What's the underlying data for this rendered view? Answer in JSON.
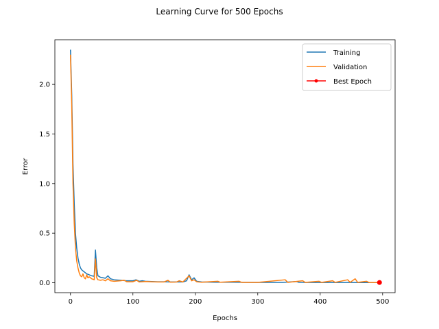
{
  "chart_data": {
    "type": "line",
    "title": "Learning Curve for 500 Epochs",
    "xlabel": "Epochs",
    "ylabel": "Error",
    "xlim": [
      -25,
      520
    ],
    "ylim": [
      -0.1,
      2.45
    ],
    "xticks": [
      0,
      100,
      200,
      300,
      400,
      500
    ],
    "yticks": [
      0.0,
      0.5,
      1.0,
      1.5,
      2.0
    ],
    "xtick_labels": [
      "0",
      "100",
      "200",
      "300",
      "400",
      "500"
    ],
    "ytick_labels": [
      "0.0",
      "0.5",
      "1.0",
      "1.5",
      "2.0"
    ],
    "grid": false,
    "legend_position": "top-right",
    "series": [
      {
        "name": "Training",
        "color": "#1f77b4",
        "marker": "none",
        "points": [
          [
            0,
            2.35
          ],
          [
            2,
            1.9
          ],
          [
            4,
            1.2
          ],
          [
            6,
            0.8
          ],
          [
            8,
            0.5
          ],
          [
            10,
            0.35
          ],
          [
            12,
            0.25
          ],
          [
            14,
            0.19
          ],
          [
            16,
            0.15
          ],
          [
            18,
            0.13
          ],
          [
            20,
            0.12
          ],
          [
            22,
            0.11
          ],
          [
            24,
            0.1
          ],
          [
            26,
            0.09
          ],
          [
            28,
            0.085
          ],
          [
            30,
            0.08
          ],
          [
            34,
            0.07
          ],
          [
            38,
            0.065
          ],
          [
            40,
            0.33
          ],
          [
            42,
            0.15
          ],
          [
            44,
            0.07
          ],
          [
            48,
            0.055
          ],
          [
            52,
            0.05
          ],
          [
            56,
            0.045
          ],
          [
            60,
            0.07
          ],
          [
            64,
            0.04
          ],
          [
            70,
            0.03
          ],
          [
            80,
            0.025
          ],
          [
            90,
            0.02
          ],
          [
            100,
            0.02
          ],
          [
            105,
            0.03
          ],
          [
            110,
            0.015
          ],
          [
            115,
            0.02
          ],
          [
            120,
            0.015
          ],
          [
            130,
            0.012
          ],
          [
            140,
            0.01
          ],
          [
            150,
            0.01
          ],
          [
            160,
            0.008
          ],
          [
            170,
            0.008
          ],
          [
            180,
            0.008
          ],
          [
            186,
            0.02
          ],
          [
            190,
            0.08
          ],
          [
            194,
            0.03
          ],
          [
            198,
            0.05
          ],
          [
            202,
            0.015
          ],
          [
            210,
            0.008
          ],
          [
            230,
            0.005
          ],
          [
            260,
            0.005
          ],
          [
            300,
            0.004
          ],
          [
            340,
            0.004
          ],
          [
            362,
            0.012
          ],
          [
            366,
            0.004
          ],
          [
            400,
            0.003
          ],
          [
            440,
            0.003
          ],
          [
            470,
            0.002
          ],
          [
            495,
            0.002
          ]
        ]
      },
      {
        "name": "Validation",
        "color": "#ff7f0e",
        "marker": "none",
        "points": [
          [
            0,
            2.3
          ],
          [
            2,
            1.8
          ],
          [
            4,
            1.0
          ],
          [
            6,
            0.6
          ],
          [
            8,
            0.35
          ],
          [
            10,
            0.22
          ],
          [
            12,
            0.15
          ],
          [
            14,
            0.1
          ],
          [
            16,
            0.07
          ],
          [
            18,
            0.06
          ],
          [
            20,
            0.09
          ],
          [
            22,
            0.05
          ],
          [
            24,
            0.04
          ],
          [
            26,
            0.08
          ],
          [
            28,
            0.05
          ],
          [
            30,
            0.06
          ],
          [
            34,
            0.04
          ],
          [
            38,
            0.03
          ],
          [
            40,
            0.24
          ],
          [
            42,
            0.05
          ],
          [
            44,
            0.03
          ],
          [
            48,
            0.025
          ],
          [
            52,
            0.03
          ],
          [
            56,
            0.02
          ],
          [
            60,
            0.04
          ],
          [
            64,
            0.02
          ],
          [
            70,
            0.015
          ],
          [
            80,
            0.02
          ],
          [
            86,
            0.025
          ],
          [
            90,
            0.01
          ],
          [
            100,
            0.01
          ],
          [
            106,
            0.025
          ],
          [
            110,
            0.008
          ],
          [
            120,
            0.012
          ],
          [
            130,
            0.01
          ],
          [
            140,
            0.008
          ],
          [
            150,
            0.008
          ],
          [
            156,
            0.025
          ],
          [
            160,
            0.006
          ],
          [
            170,
            0.008
          ],
          [
            174,
            0.02
          ],
          [
            180,
            0.008
          ],
          [
            190,
            0.07
          ],
          [
            194,
            0.02
          ],
          [
            198,
            0.03
          ],
          [
            202,
            0.01
          ],
          [
            210,
            0.005
          ],
          [
            236,
            0.015
          ],
          [
            240,
            0.005
          ],
          [
            270,
            0.015
          ],
          [
            274,
            0.004
          ],
          [
            300,
            0.004
          ],
          [
            344,
            0.03
          ],
          [
            348,
            0.004
          ],
          [
            372,
            0.02
          ],
          [
            376,
            0.004
          ],
          [
            398,
            0.015
          ],
          [
            402,
            0.004
          ],
          [
            420,
            0.02
          ],
          [
            424,
            0.004
          ],
          [
            444,
            0.03
          ],
          [
            448,
            0.004
          ],
          [
            456,
            0.04
          ],
          [
            460,
            0.004
          ],
          [
            474,
            0.015
          ],
          [
            478,
            0.003
          ],
          [
            495,
            0.003
          ]
        ]
      },
      {
        "name": "Best Epoch",
        "color": "#ff0000",
        "marker": "circle",
        "points": [
          [
            495,
            0.003
          ]
        ]
      }
    ]
  }
}
